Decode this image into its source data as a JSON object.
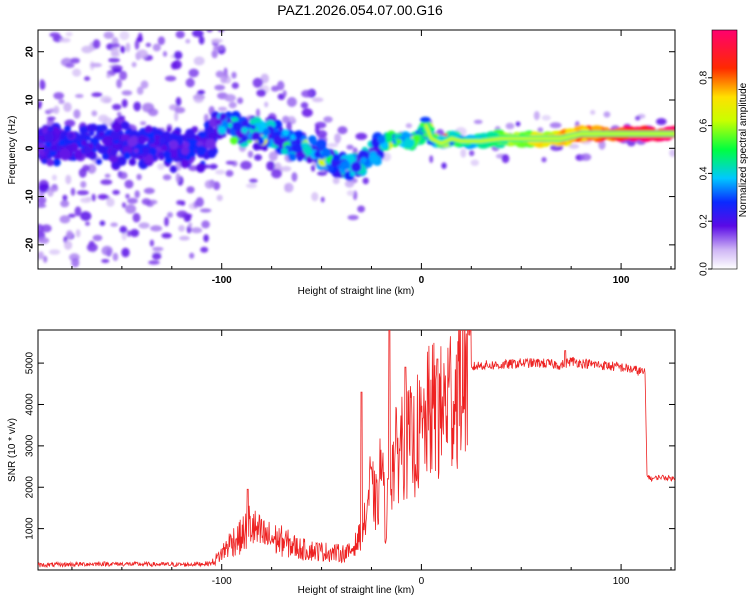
{
  "title": "PAZ1.2026.054.07.00.G16",
  "chart_data": [
    {
      "type": "heatmap",
      "name": "spectrogram",
      "xlabel": "Height of straight line (km)",
      "ylabel": "Frequency (Hz)",
      "xlim": [
        -192,
        127
      ],
      "ylim": [
        -25,
        24.5
      ],
      "xticks": [
        -100,
        0,
        100
      ],
      "yticks": [
        -20,
        -10,
        0,
        10,
        20
      ],
      "xtick_labels": [
        "-100",
        "0",
        "100"
      ],
      "ytick_labels": [
        "-20",
        "-10",
        "0",
        "10",
        "20"
      ],
      "colorbar": {
        "label": "Normalized spectral amplitude",
        "range": [
          0,
          1
        ],
        "ticks": [
          0.0,
          0.2,
          0.4,
          0.6,
          0.8
        ],
        "tick_labels": [
          "0.0",
          "0.2",
          "0.4",
          "0.6",
          "0.8"
        ],
        "colormap": "rainbow (purple to magenta)"
      },
      "ridge": {
        "description": "dominant frequency track vs height",
        "x": [
          -190,
          -170,
          -150,
          -130,
          -110,
          -100,
          -90,
          -80,
          -70,
          -60,
          -50,
          -40,
          -35,
          -30,
          -25,
          -20,
          -15,
          -10,
          -5,
          0,
          2,
          5,
          10,
          15,
          20,
          30,
          40,
          50,
          60,
          70,
          80,
          90,
          100,
          110,
          120,
          127
        ],
        "y": [
          1,
          0,
          1,
          0,
          0,
          5,
          4,
          3,
          2,
          0,
          -1,
          -4,
          -4,
          -3,
          -1,
          1,
          2,
          2,
          1,
          3,
          5,
          2,
          1,
          2,
          1.5,
          1.5,
          2,
          2,
          2,
          2,
          3,
          3,
          3,
          3,
          3,
          3
        ]
      }
    },
    {
      "type": "line",
      "name": "snr",
      "xlabel": "Height of straight line (km)",
      "ylabel": "SNR (10 * v/v)",
      "xlim": [
        -192,
        127
      ],
      "ylim": [
        0,
        5800
      ],
      "xticks": [
        -100,
        0,
        100
      ],
      "yticks": [
        1000,
        2000,
        3000,
        4000,
        5000
      ],
      "xtick_labels": [
        "-100",
        "0",
        "100"
      ],
      "ytick_labels": [
        "1000",
        "2000",
        "3000",
        "4000",
        "5000"
      ],
      "color": "#ee2222",
      "series": [
        {
          "name": "SNR",
          "x": [
            -192,
            -180,
            -160,
            -140,
            -120,
            -105,
            -100,
            -95,
            -90,
            -86,
            -82,
            -78,
            -70,
            -60,
            -50,
            -40,
            -36,
            -32,
            -30,
            -28,
            -26,
            -24,
            -22,
            -20,
            -18,
            -16,
            -14,
            -12,
            -10,
            -8,
            -6,
            -4,
            -2,
            0,
            2,
            4,
            6,
            8,
            10,
            12,
            14,
            16,
            18,
            20,
            22,
            25,
            30,
            40,
            50,
            60,
            70,
            75,
            80,
            90,
            100,
            105,
            110,
            112,
            113,
            115,
            120,
            127
          ],
          "y": [
            120,
            130,
            150,
            140,
            130,
            160,
            400,
            700,
            800,
            1100,
            900,
            800,
            700,
            500,
            450,
            400,
            420,
            700,
            900,
            1200,
            2000,
            1800,
            1500,
            2800,
            1000,
            2200,
            2600,
            2800,
            3200,
            3000,
            3100,
            3000,
            3300,
            3200,
            3500,
            3800,
            3900,
            3600,
            3800,
            4000,
            4300,
            4100,
            4400,
            4700,
            4800,
            4900,
            4950,
            4950,
            5000,
            5000,
            4950,
            5050,
            5000,
            4950,
            4900,
            4850,
            4800,
            4750,
            2300,
            2200,
            2250,
            2200
          ],
          "spikes": [
            {
              "x": -87,
              "y": 1950
            },
            {
              "x": -30,
              "y": 4300
            },
            {
              "x": -16,
              "y": 5800
            },
            {
              "x": -8,
              "y": 4900
            },
            {
              "x": 8,
              "y": 5100
            },
            {
              "x": 72,
              "y": 5300
            }
          ]
        }
      ]
    }
  ]
}
